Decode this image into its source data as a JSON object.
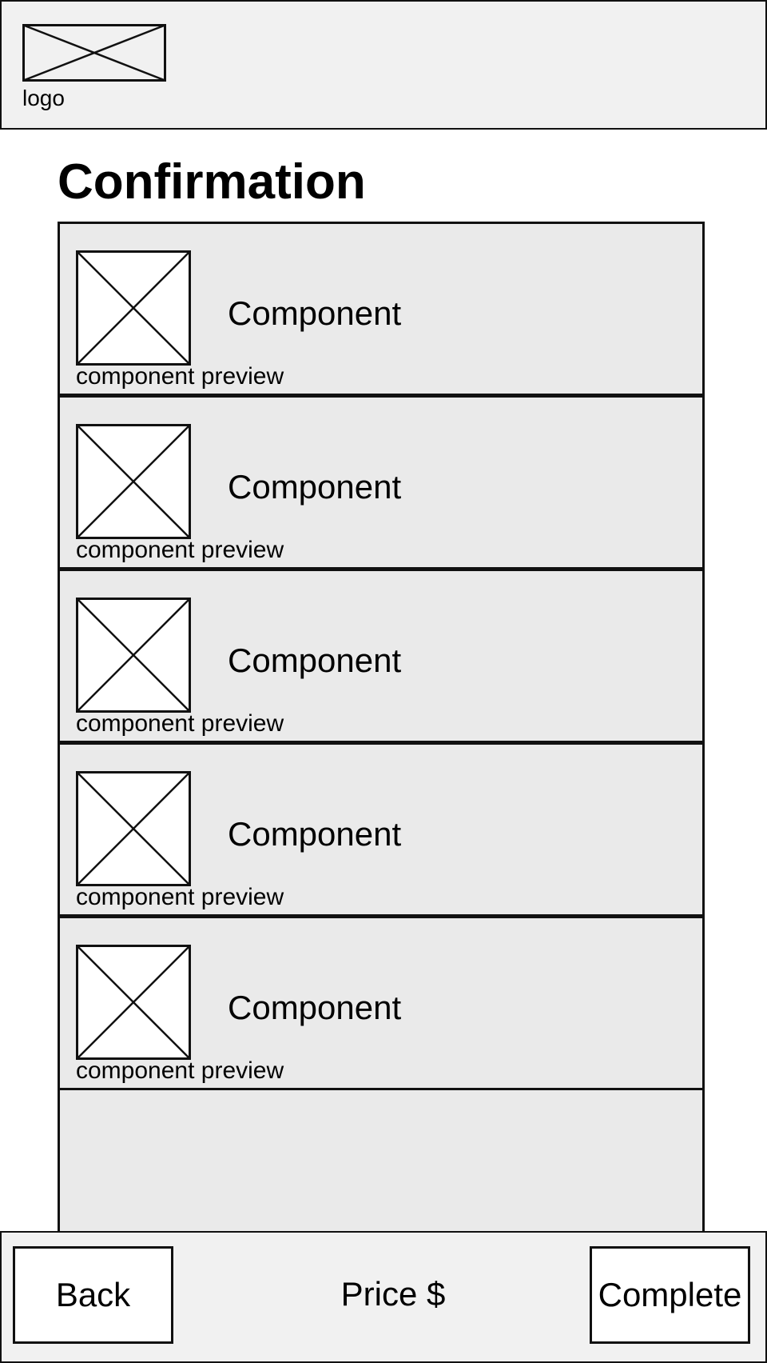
{
  "header": {
    "logo_label": "logo",
    "logo_icon": "image-placeholder-icon"
  },
  "page": {
    "title": "Confirmation"
  },
  "list": {
    "items": [
      {
        "title": "Component",
        "caption": "component preview"
      },
      {
        "title": "Component",
        "caption": "component preview"
      },
      {
        "title": "Component",
        "caption": "component preview"
      },
      {
        "title": "Component",
        "caption": "component preview"
      },
      {
        "title": "Component",
        "caption": "component preview"
      }
    ]
  },
  "footer": {
    "back_label": "Back",
    "price_label": "Price $",
    "complete_label": "Complete"
  },
  "colors": {
    "header_bg": "#f1f1f1",
    "list_bg": "#eaeaea",
    "border": "#111111",
    "button_bg": "#ffffff"
  }
}
